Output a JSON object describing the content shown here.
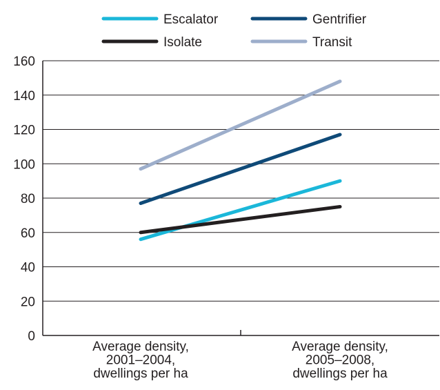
{
  "chart_data": {
    "type": "line",
    "categories": [
      [
        "Average density,",
        "2001–2004,",
        "dwellings per ha"
      ],
      [
        "Average density,",
        "2005–2008,",
        "dwellings per ha"
      ]
    ],
    "series": [
      {
        "name": "Escalator",
        "values": [
          56,
          90
        ],
        "color": "#1bb7d9"
      },
      {
        "name": "Gentrifier",
        "values": [
          77,
          117
        ],
        "color": "#0f4a78"
      },
      {
        "name": "Isolate",
        "values": [
          60,
          75
        ],
        "color": "#231f20"
      },
      {
        "name": "Transit",
        "values": [
          97,
          148
        ],
        "color": "#9daecb"
      }
    ],
    "ylim": [
      0,
      160
    ],
    "yticks": [
      "0",
      "20",
      "40",
      "60",
      "80",
      "100",
      "120",
      "140",
      "160"
    ],
    "grid": true,
    "legend_position": "top"
  }
}
